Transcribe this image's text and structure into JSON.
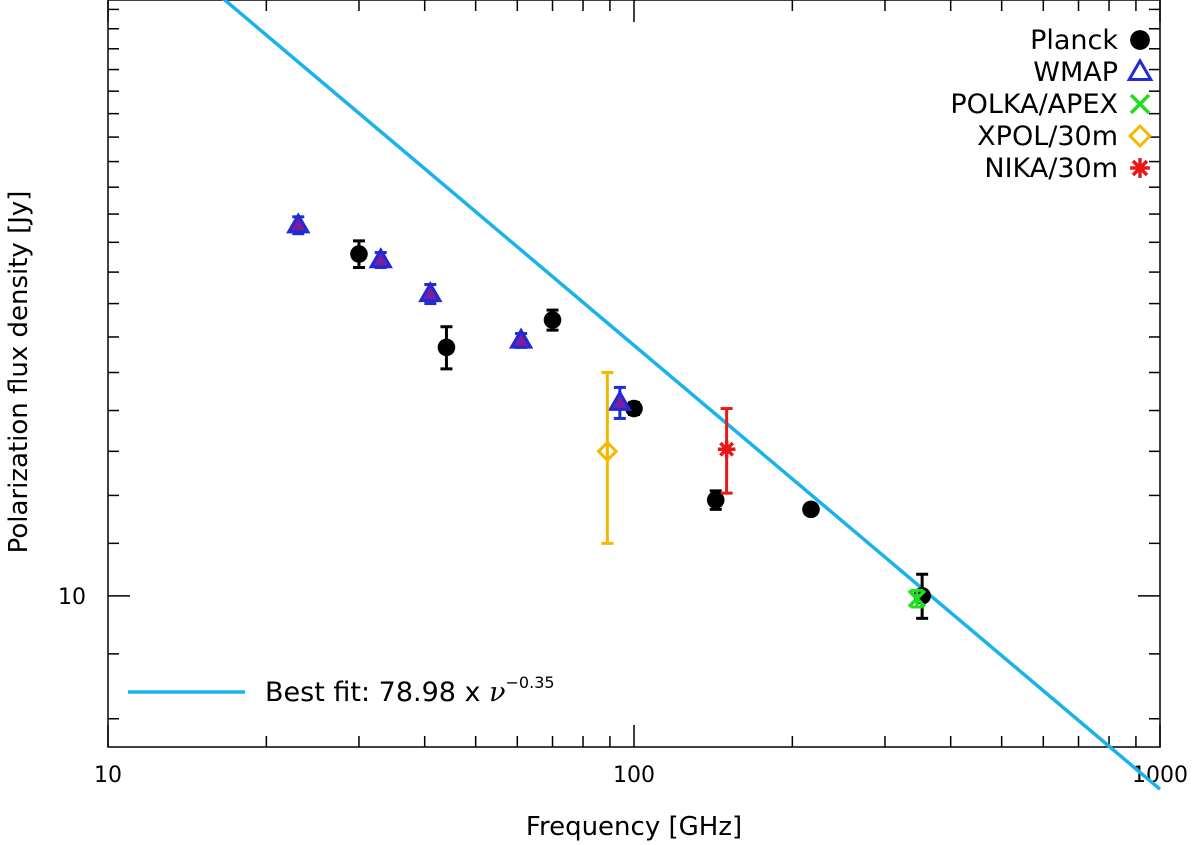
{
  "chart_data": {
    "type": "scatter",
    "xlabel": "Frequency [GHz]",
    "ylabel": "Polarization flux density [Jy]",
    "x_scale": "log",
    "y_scale": "log",
    "xlim": [
      10,
      1000
    ],
    "ylim": [
      7.6,
      29.5
    ],
    "x_tick_labels": [
      "10",
      "100",
      "1000"
    ],
    "y_tick_labels": [
      "10"
    ],
    "legend_position": "top-right",
    "series": [
      {
        "name": "Planck",
        "marker": "circle",
        "color": "#000000",
        "points": [
          {
            "x": 30,
            "y": 18.6,
            "err": 0.45
          },
          {
            "x": 44,
            "y": 15.7,
            "err": 0.6
          },
          {
            "x": 70,
            "y": 16.5,
            "err": 0.3
          },
          {
            "x": 100,
            "y": 14.05,
            "err": 0.15
          },
          {
            "x": 143,
            "y": 11.9,
            "err": 0.2
          },
          {
            "x": 217,
            "y": 11.7,
            "err": 0.1
          },
          {
            "x": 353,
            "y": 10.0,
            "err": 0.4
          }
        ]
      },
      {
        "name": "WMAP",
        "marker": "triangle",
        "color": "#1f2bd6",
        "fill": "#7a1fa0",
        "points": [
          {
            "x": 23,
            "y": 19.6,
            "err": 0.3
          },
          {
            "x": 33,
            "y": 18.4,
            "err": 0.25
          },
          {
            "x": 41,
            "y": 17.3,
            "err": 0.3
          },
          {
            "x": 61,
            "y": 15.9,
            "err": 0.2
          },
          {
            "x": 94,
            "y": 14.2,
            "err": 0.4
          }
        ]
      },
      {
        "name": "POLKA/APEX",
        "marker": "x",
        "color": "#22dd22",
        "points": [
          {
            "x": 345,
            "y": 9.95,
            "err": 0.15
          }
        ]
      },
      {
        "name": "XPOL/30m",
        "marker": "diamond",
        "color": "#f5b800",
        "points": [
          {
            "x": 89,
            "y": 13.0,
            "err": 2.0
          }
        ]
      },
      {
        "name": "NIKA/30m",
        "marker": "asterisk",
        "color": "#e81818",
        "points": [
          {
            "x": 150,
            "y": 13.05,
            "err": 1.0
          }
        ]
      }
    ],
    "fit": {
      "label": "Best fit: 78.98  x ",
      "symbol": "ν",
      "exponent": "−0.35",
      "amplitude": 78.98,
      "power": -0.35,
      "color": "#1ab2ec"
    }
  }
}
